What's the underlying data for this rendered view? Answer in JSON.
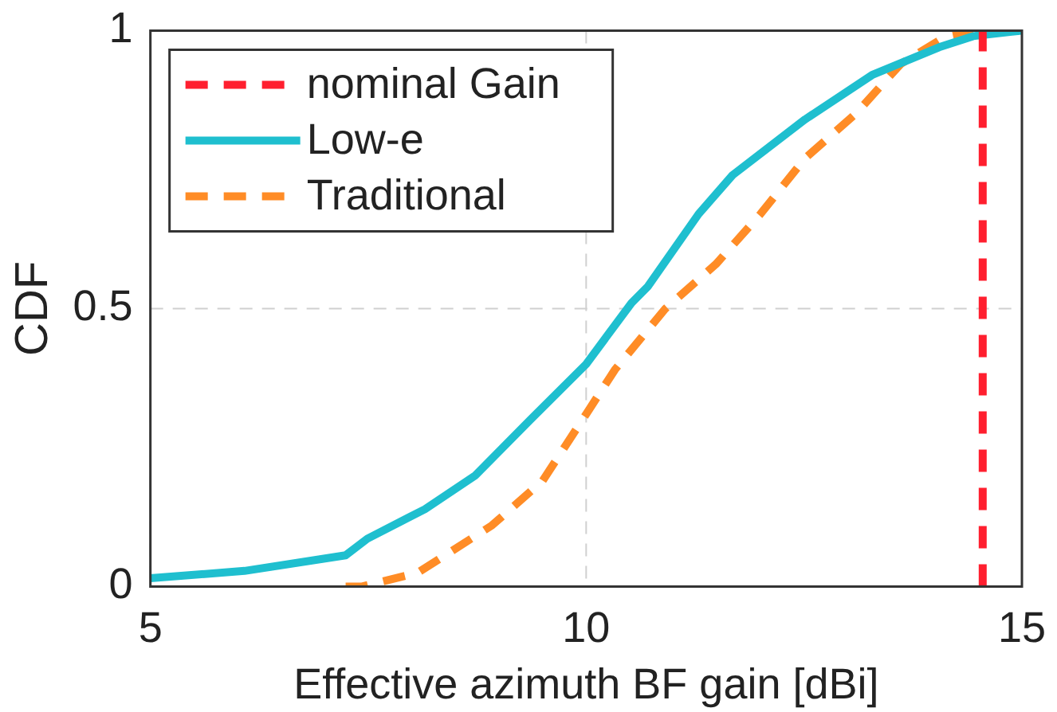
{
  "chart_data": {
    "type": "line",
    "xlabel": "Effective azimuth BF gain [dBi]",
    "ylabel": "CDF",
    "xlim": [
      5,
      15
    ],
    "xticks": [
      5,
      10,
      15
    ],
    "ylim": [
      0,
      1
    ],
    "yticks": [
      0,
      0.5,
      1
    ],
    "grid": true,
    "legend": "top left",
    "marker": "none",
    "series": [
      {
        "name": "nominal Gain",
        "color": "#ff1f2f",
        "line_style": "dashed",
        "x": [
          14.55,
          14.55
        ],
        "values": [
          0,
          1
        ]
      },
      {
        "name": "Low-e",
        "color": "#1fbfcf",
        "line_style": "solid",
        "x": [
          5,
          6.08,
          7.24,
          7.49,
          8.15,
          8.73,
          9.36,
          10,
          10.52,
          10.71,
          11.29,
          11.68,
          12.51,
          13.28,
          14.05,
          14.44,
          15
        ],
        "values": [
          0.015,
          0.028,
          0.056,
          0.086,
          0.139,
          0.2,
          0.3,
          0.4,
          0.51,
          0.54,
          0.67,
          0.74,
          0.84,
          0.92,
          0.97,
          0.99,
          1
        ]
      },
      {
        "name": "Traditional",
        "color": "#ff8c26",
        "line_style": "dashed",
        "x": [
          7.24,
          7.43,
          8.07,
          8.92,
          9.5,
          10,
          10.33,
          10.91,
          11.49,
          12.0,
          12.51,
          13.09,
          13.61,
          14.13,
          14.44
        ],
        "values": [
          0,
          0,
          0.025,
          0.11,
          0.19,
          0.31,
          0.39,
          0.5,
          0.58,
          0.67,
          0.77,
          0.85,
          0.94,
          0.99,
          1
        ]
      }
    ]
  }
}
